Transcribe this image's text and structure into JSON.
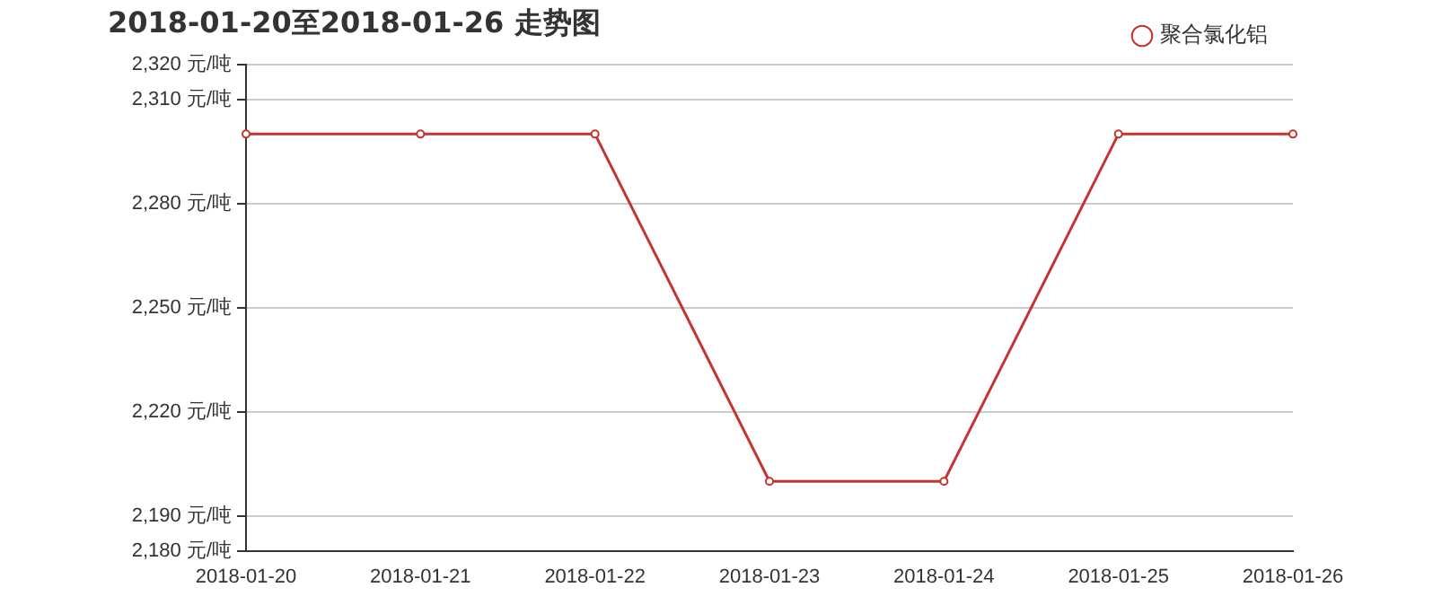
{
  "chart_data": {
    "type": "line",
    "title": "2018-01-20至2018-01-26 走势图",
    "categories": [
      "2018-01-20",
      "2018-01-21",
      "2018-01-22",
      "2018-01-23",
      "2018-01-24",
      "2018-01-25",
      "2018-01-26"
    ],
    "series": [
      {
        "name": "聚合氯化铝",
        "color": "#c23531",
        "values": [
          2300,
          2300,
          2300,
          2200,
          2200,
          2300,
          2300
        ]
      }
    ],
    "ylim": [
      2180,
      2320
    ],
    "yticks": [
      {
        "value": 2180,
        "label": "2,180 元/吨"
      },
      {
        "value": 2190,
        "label": "2,190 元/吨"
      },
      {
        "value": 2220,
        "label": "2,220 元/吨"
      },
      {
        "value": 2250,
        "label": "2,250 元/吨"
      },
      {
        "value": 2280,
        "label": "2,280 元/吨"
      },
      {
        "value": 2310,
        "label": "2,310 元/吨"
      },
      {
        "value": 2320,
        "label": "2,320 元/吨"
      }
    ],
    "grid": "y",
    "legend": "top right",
    "marker": "circle",
    "line_style": "solid"
  }
}
